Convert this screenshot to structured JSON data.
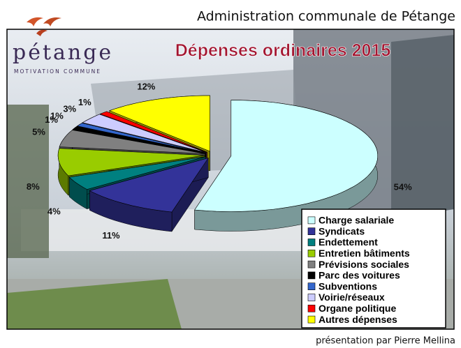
{
  "header": {
    "title": "Administration communale de Pétange"
  },
  "logo": {
    "name": "pétange",
    "tagline": "MOTIVATION COMMUNE"
  },
  "footer": {
    "credit": "présentation par Pierre Mellina"
  },
  "chart_data": {
    "type": "pie",
    "title": "Dépenses ordinaires 2015",
    "categories": [
      "Charge salariale",
      "Syndicats",
      "Endettement",
      "Entretien bâtiments",
      "Prévisions sociales",
      "Parc des voitures",
      "Subventions",
      "Voirie/réseaux",
      "Organe politique",
      "Autres dépenses"
    ],
    "values": [
      54,
      11,
      4,
      8,
      5,
      1,
      1,
      3,
      1,
      12
    ],
    "value_labels": [
      "54%",
      "11%",
      "4%",
      "8%",
      "5%",
      "1%",
      "1%",
      "3%",
      "1%",
      "12%"
    ],
    "colors": [
      "#ccffff",
      "#333399",
      "#008080",
      "#99cc00",
      "#808080",
      "#000000",
      "#3366cc",
      "#ccccff",
      "#ff0000",
      "#ffff00"
    ],
    "legend": "bottom-right"
  }
}
